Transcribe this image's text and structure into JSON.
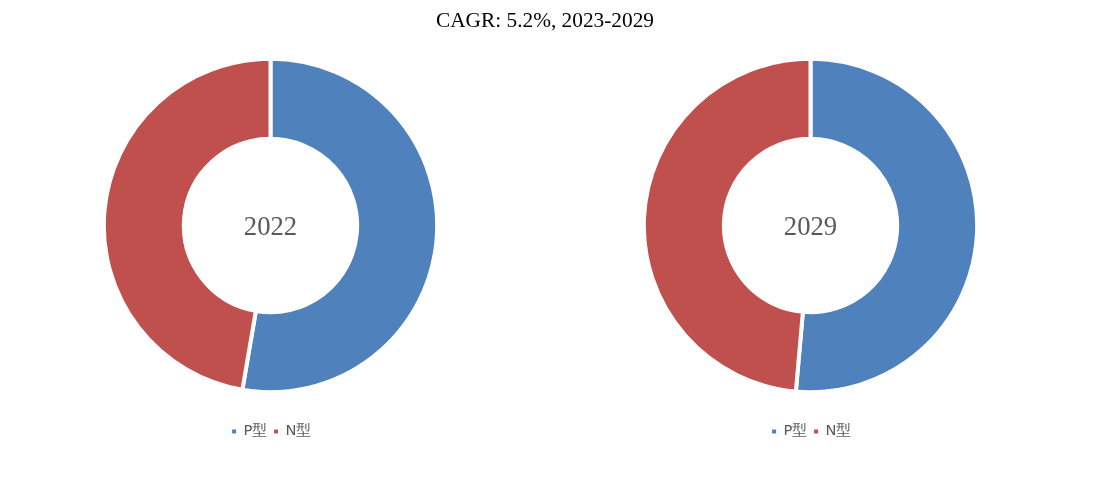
{
  "chart_data": [
    {
      "type": "donut",
      "title": "CAGR: 5.2%, 2023-2029",
      "annotations": [
        "2022"
      ],
      "categories": [
        "P型",
        "N型"
      ],
      "values": [
        52.7,
        47.3
      ],
      "colors": [
        "#4f81bd",
        "#c0504d"
      ],
      "legend": "bottom"
    },
    {
      "type": "donut",
      "annotations": [
        "2029"
      ],
      "categories": [
        "P型",
        "N型"
      ],
      "values": [
        51.4,
        48.6
      ],
      "colors": [
        "#4f81bd",
        "#c0504d"
      ],
      "legend": "bottom"
    }
  ]
}
